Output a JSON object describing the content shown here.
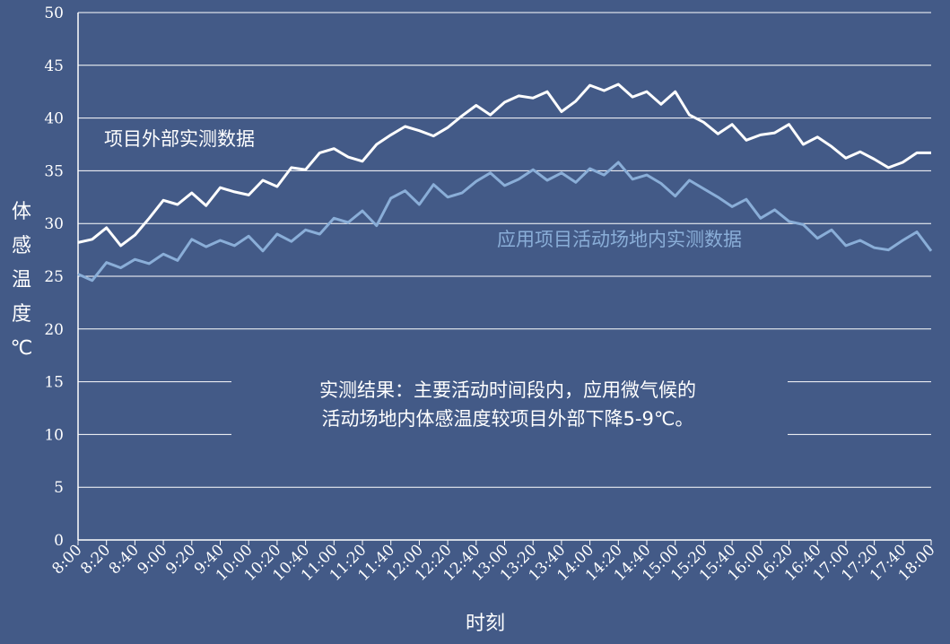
{
  "chart_data": {
    "type": "line",
    "xlabel": "时刻",
    "ylabel_chars": [
      "体",
      "感",
      "温",
      "度",
      "℃"
    ],
    "ylim": [
      0,
      50
    ],
    "yticks": [
      0,
      5,
      10,
      15,
      20,
      25,
      30,
      35,
      40,
      45,
      50
    ],
    "grid": true,
    "x_tick_labels": [
      "8:00",
      "8:20",
      "8:40",
      "9:00",
      "9:20",
      "9:40",
      "10:00",
      "10:20",
      "10:40",
      "11:00",
      "11:20",
      "11:40",
      "12:00",
      "12:20",
      "12:40",
      "13:00",
      "13:20",
      "13:40",
      "14:00",
      "14:20",
      "14:40",
      "15:00",
      "15:20",
      "15:40",
      "16:00",
      "16:20",
      "16:40",
      "17:00",
      "17:20",
      "17:40",
      "18:00"
    ],
    "series": [
      {
        "name": "项目外部实测数据",
        "color": "#ffffff",
        "values": [
          28.2,
          28.5,
          29.6,
          27.9,
          28.9,
          30.5,
          32.2,
          31.8,
          32.9,
          31.7,
          33.4,
          33.0,
          32.7,
          34.1,
          33.5,
          35.3,
          35.1,
          36.7,
          37.1,
          36.3,
          35.9,
          37.5,
          38.4,
          39.2,
          38.8,
          38.3,
          39.1,
          40.2,
          41.2,
          40.3,
          41.5,
          42.1,
          41.9,
          42.5,
          40.6,
          41.6,
          43.1,
          42.6,
          43.2,
          42.0,
          42.5,
          41.3,
          42.5,
          40.3,
          39.6,
          38.5,
          39.4,
          37.9,
          38.4,
          38.6,
          39.4,
          37.5,
          38.2,
          37.3,
          36.2,
          36.8,
          36.1,
          35.3,
          35.8,
          36.7,
          36.7
        ]
      },
      {
        "name": "应用项目活动场地内实测数据",
        "color": "#8aaed8",
        "values": [
          25.2,
          24.6,
          26.3,
          25.8,
          26.6,
          26.2,
          27.1,
          26.5,
          28.5,
          27.8,
          28.4,
          27.9,
          28.8,
          27.4,
          29.0,
          28.3,
          29.4,
          29.0,
          30.5,
          30.1,
          31.2,
          29.8,
          32.4,
          33.1,
          31.8,
          33.7,
          32.5,
          32.9,
          34.0,
          34.8,
          33.6,
          34.2,
          35.1,
          34.1,
          34.8,
          33.9,
          35.2,
          34.6,
          35.8,
          34.2,
          34.6,
          33.8,
          32.6,
          34.1,
          33.3,
          32.5,
          31.6,
          32.3,
          30.5,
          31.3,
          30.2,
          29.9,
          28.6,
          29.4,
          27.9,
          28.4,
          27.7,
          27.5,
          28.4,
          29.2,
          27.4
        ]
      }
    ],
    "annotations": [
      "实测结果：主要活动时间段内，应用微气候的",
      "活动场地内体感温度较项目外部下降5-9℃。"
    ]
  }
}
